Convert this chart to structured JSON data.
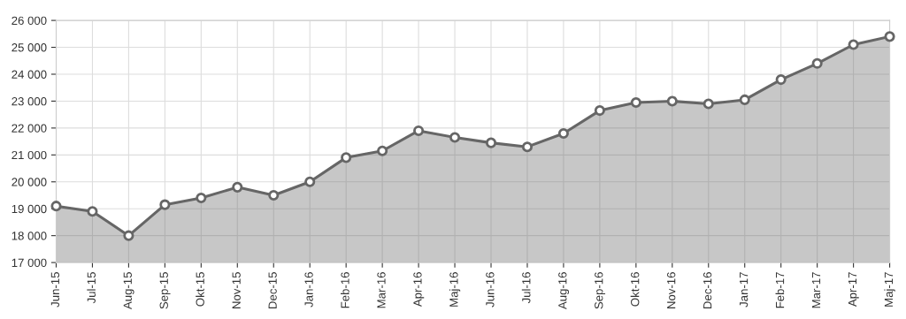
{
  "chart_data": {
    "type": "area",
    "categories": [
      "Jun-15",
      "Jul-15",
      "Aug-15",
      "Sep-15",
      "Okt-15",
      "Nov-15",
      "Dec-15",
      "Jan-16",
      "Feb-16",
      "Mar-16",
      "Apr-16",
      "Maj-16",
      "Jun-16",
      "Jul-16",
      "Aug-16",
      "Sep-16",
      "Okt-16",
      "Nov-16",
      "Dec-16",
      "Jan-17",
      "Feb-17",
      "Mar-17",
      "Apr-17",
      "Maj-17"
    ],
    "series": [
      {
        "color": "#666666",
        "values": [
          19100,
          18900,
          18000,
          19150,
          19400,
          19800,
          19500,
          20000,
          20900,
          21150,
          21900,
          21650,
          21450,
          21300,
          21800,
          22650,
          22950,
          23000,
          22900,
          23050,
          23800,
          24400,
          25100,
          25400
        ]
      }
    ],
    "ylim": [
      17000,
      26000
    ],
    "yticks": [
      {
        "value": 17000,
        "label": "17 000"
      },
      {
        "value": 18000,
        "label": "18 000"
      },
      {
        "value": 19000,
        "label": "19 000"
      },
      {
        "value": 20000,
        "label": "20 000"
      },
      {
        "value": 21000,
        "label": "21 000"
      },
      {
        "value": 22000,
        "label": "22 000"
      },
      {
        "value": 23000,
        "label": "23 000"
      },
      {
        "value": 24000,
        "label": "24 000"
      },
      {
        "value": 25000,
        "label": "25 000"
      },
      {
        "value": 26000,
        "label": "26 000"
      }
    ],
    "grid": true,
    "marker": "circle",
    "line_style": "solid",
    "legend": false
  }
}
